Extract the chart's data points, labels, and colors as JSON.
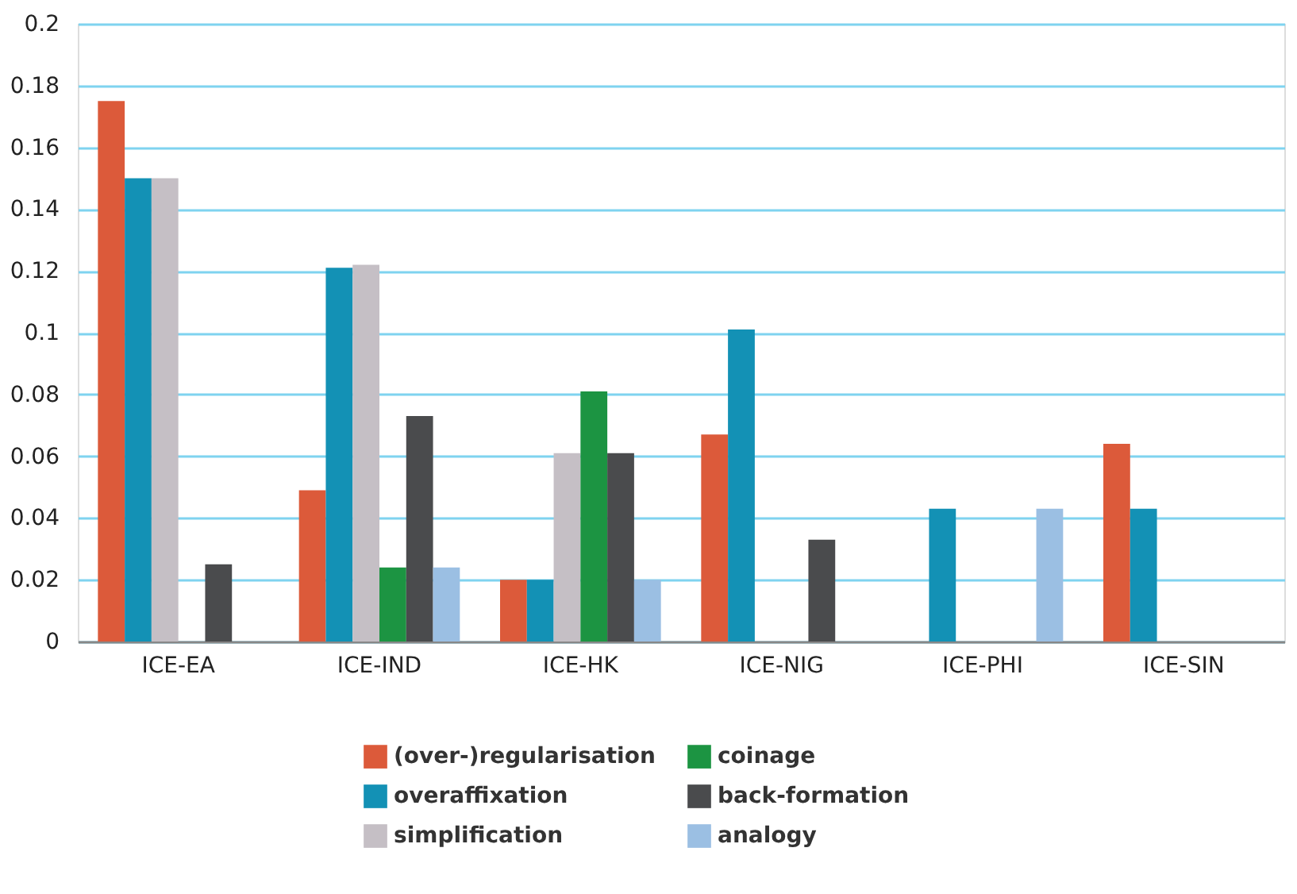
{
  "chart_data": {
    "type": "bar",
    "categories": [
      "ICE-EA",
      "ICE-IND",
      "ICE-HK",
      "ICE-NIG",
      "ICE-PHI",
      "ICE-SIN"
    ],
    "series": [
      {
        "name": "(over-)regularisation",
        "color": "#dc5a3a",
        "values": [
          0.175,
          0.049,
          0.02,
          0.067,
          null,
          0.064
        ]
      },
      {
        "name": "overaffixation",
        "color": "#1391b5",
        "values": [
          0.15,
          0.121,
          0.02,
          0.101,
          0.043,
          0.043
        ]
      },
      {
        "name": "simplification",
        "color": "#c5bfc5",
        "values": [
          0.15,
          0.122,
          0.061,
          null,
          null,
          null
        ]
      },
      {
        "name": "coinage",
        "color": "#1c9442",
        "values": [
          null,
          0.024,
          0.081,
          null,
          null,
          null
        ]
      },
      {
        "name": "back-formation",
        "color": "#4a4b4d",
        "values": [
          0.025,
          0.073,
          0.061,
          0.033,
          null,
          null
        ]
      },
      {
        "name": "analogy",
        "color": "#9bbfe3",
        "values": [
          null,
          0.024,
          0.02,
          null,
          0.043,
          null
        ]
      }
    ],
    "ylim": [
      0,
      0.2
    ],
    "yticks": [
      0,
      0.02,
      0.04,
      0.06,
      0.08,
      0.1,
      0.12,
      0.14,
      0.16,
      0.18,
      0.2
    ],
    "grid": "y",
    "legend": "bottom"
  }
}
